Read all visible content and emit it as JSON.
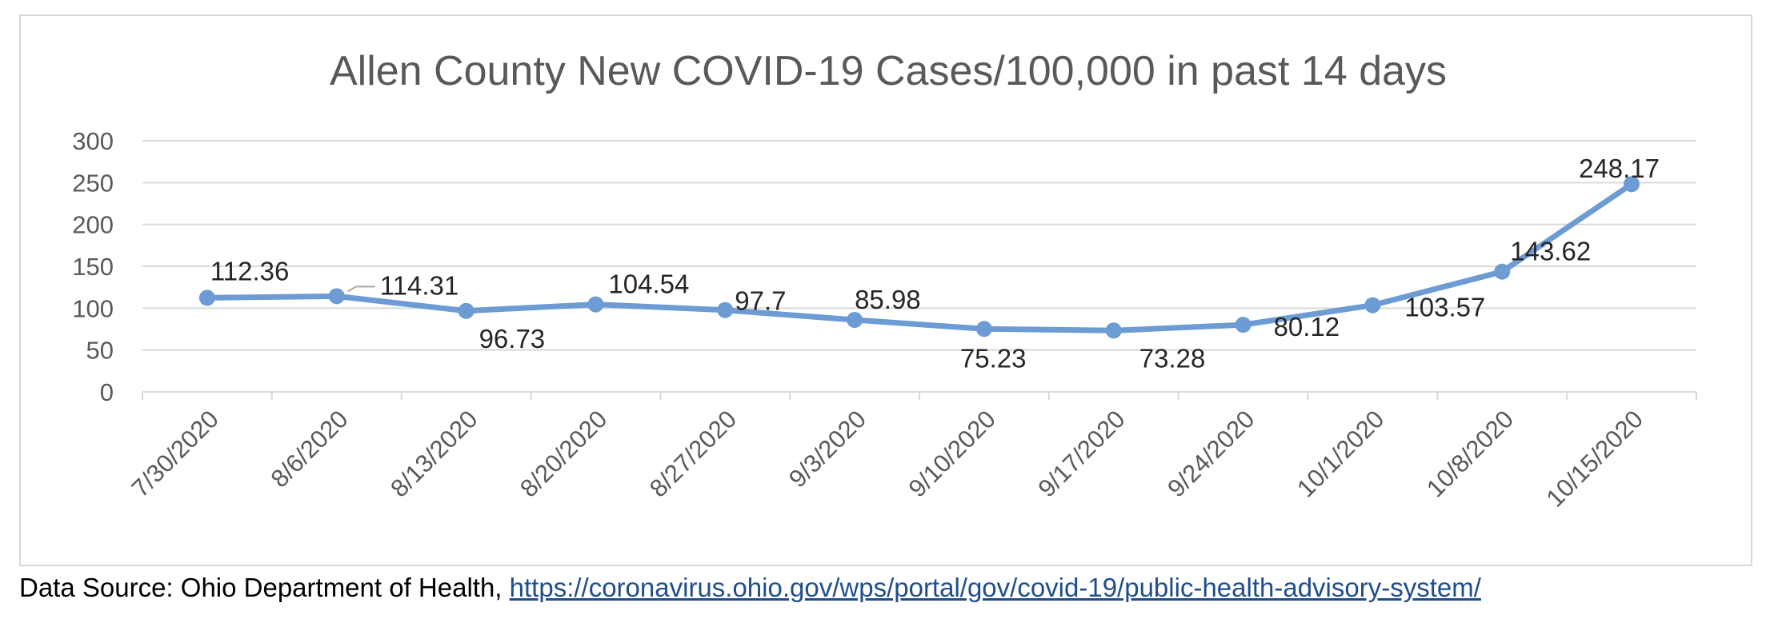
{
  "chart_data": {
    "type": "line",
    "title": "Allen County New COVID-19 Cases/100,000 in past 14 days",
    "xlabel": "",
    "ylabel": "",
    "categories": [
      "7/30/2020",
      "8/6/2020",
      "8/13/2020",
      "8/20/2020",
      "8/27/2020",
      "9/3/2020",
      "9/10/2020",
      "9/17/2020",
      "9/24/2020",
      "10/1/2020",
      "10/8/2020",
      "10/15/2020"
    ],
    "series": [
      {
        "values": [
          112.36,
          114.31,
          96.73,
          104.54,
          97.7,
          85.98,
          75.23,
          73.28,
          80.12,
          103.57,
          143.62,
          248.17
        ],
        "labels": [
          "112.36",
          "114.31",
          "96.73",
          "104.54",
          "97.7",
          "85.98",
          "75.23",
          "73.28",
          "80.12",
          "103.57",
          "143.62",
          "248.17"
        ],
        "color": "#6d9bd3"
      }
    ],
    "ylim": [
      0,
      300
    ],
    "yticks": [
      "0",
      "50",
      "100",
      "150",
      "200",
      "250",
      "300"
    ],
    "grid": true,
    "legend": "none"
  },
  "footer": {
    "source_prefix": "Data Source: Ohio Department of Health, ",
    "source_link": "https://coronavirus.ohio.gov/wps/portal/gov/covid-19/public-health-advisory-system/"
  }
}
